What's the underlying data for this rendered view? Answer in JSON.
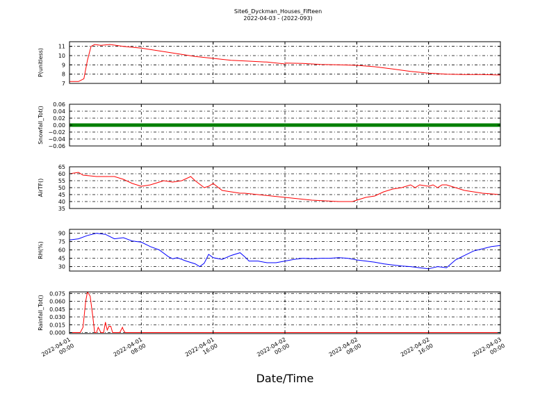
{
  "figure": {
    "title": "Site6_Dyckman_Houses_Fifteen",
    "subtitle": "2022-04-03 - (2022-093)",
    "xlabel": "Date/Time",
    "x_ticks": [
      [
        "2022-04-01",
        "00:00"
      ],
      [
        "2022-04-01",
        "08:00"
      ],
      [
        "2022-04-01",
        "16:00"
      ],
      [
        "2022-04-02",
        "00:00"
      ],
      [
        "2022-04-02",
        "08:00"
      ],
      [
        "2022-04-02",
        "16:00"
      ],
      [
        "2022-04-03",
        "00:00"
      ]
    ]
  },
  "chart_data": [
    {
      "type": "line",
      "ylabel": "P(unitless)",
      "color": "#ff0000",
      "ylim": [
        7,
        11.5
      ],
      "yticks": [
        7,
        8,
        9,
        10,
        11
      ],
      "ytick_labels": [
        "7",
        "8",
        "9",
        "10",
        "11"
      ],
      "grid": true,
      "x_hours": [
        0,
        1,
        1.6,
        2,
        2.4,
        2.8,
        3.5,
        4.5,
        6,
        8,
        10,
        12,
        14,
        16,
        18,
        20,
        22,
        24,
        24.1,
        26,
        28,
        30,
        32,
        34,
        36,
        38,
        40,
        42,
        44,
        46,
        48
      ],
      "values": [
        7.2,
        7.2,
        7.5,
        9.5,
        11.0,
        11.2,
        11.1,
        11.2,
        11.0,
        10.8,
        10.5,
        10.2,
        9.9,
        9.7,
        9.5,
        9.4,
        9.3,
        9.1,
        9.2,
        9.15,
        9.05,
        9.0,
        8.95,
        8.8,
        8.55,
        8.3,
        8.1,
        8.0,
        7.95,
        7.95,
        7.9
      ]
    },
    {
      "type": "scatter",
      "ylabel": "Snowfall_Tot()",
      "color": "#007f00",
      "ylim": [
        -0.06,
        0.06
      ],
      "yticks": [
        -0.06,
        -0.04,
        -0.02,
        0.0,
        0.02,
        0.04,
        0.06
      ],
      "ytick_labels": [
        "−0.06",
        "−0.04",
        "−0.02",
        "0.00",
        "0.02",
        "0.04",
        "0.06"
      ],
      "grid": true,
      "x_hours": [
        0,
        48
      ],
      "values": [
        0.0,
        0.0
      ],
      "dense": true
    },
    {
      "type": "line",
      "ylabel": "AirTF()",
      "color": "#ff0000",
      "ylim": [
        35,
        65
      ],
      "yticks": [
        35,
        40,
        45,
        50,
        55,
        60,
        65
      ],
      "ytick_labels": [
        "35",
        "40",
        "45",
        "50",
        "55",
        "60",
        "65"
      ],
      "grid": true,
      "x_hours": [
        0,
        1,
        1.5,
        3,
        5,
        6,
        7,
        8,
        9,
        10,
        10.5,
        11.5,
        12.5,
        13.5,
        14,
        15,
        15.5,
        16,
        17,
        18,
        19,
        19.5,
        21,
        24,
        27,
        30,
        31.5,
        32,
        33,
        34,
        35,
        36,
        37,
        38,
        38.5,
        39,
        40,
        40.5,
        41,
        41.5,
        42,
        43,
        44,
        45,
        46,
        48
      ],
      "values": [
        60,
        61,
        59,
        58,
        58,
        56,
        53,
        51,
        52,
        54,
        55,
        54,
        55,
        58,
        55,
        50,
        51,
        53,
        48,
        47,
        46,
        46,
        45,
        43,
        41,
        40,
        40,
        41,
        43,
        44,
        47,
        49,
        50,
        52,
        50,
        52,
        51,
        52,
        50,
        52,
        52,
        50,
        48,
        47,
        46,
        45
      ]
    },
    {
      "type": "line",
      "ylabel": "RH(%)",
      "color": "#0000ff",
      "ylim": [
        22,
        97
      ],
      "yticks": [
        30,
        45,
        60,
        75,
        90
      ],
      "ytick_labels": [
        "30",
        "45",
        "60",
        "75",
        "90"
      ],
      "grid": true,
      "x_hours": [
        0,
        1,
        2,
        3,
        4,
        5,
        6,
        7,
        8,
        9,
        10,
        11,
        11.5,
        12,
        13,
        14,
        14.5,
        15,
        15.5,
        16,
        17,
        18,
        19,
        19.5,
        20,
        21,
        22,
        23,
        24,
        25,
        26,
        27,
        28,
        29,
        30,
        31,
        32,
        33,
        34,
        35,
        36,
        37,
        38,
        39,
        39.5,
        40,
        41,
        42,
        43,
        44,
        45,
        46,
        47,
        48
      ],
      "values": [
        78,
        80,
        86,
        90,
        88,
        80,
        82,
        76,
        74,
        66,
        60,
        48,
        44,
        46,
        40,
        35,
        30,
        36,
        52,
        46,
        43,
        50,
        55,
        48,
        40,
        40,
        37,
        37,
        40,
        43,
        45,
        44,
        45,
        45,
        46,
        45,
        42,
        40,
        38,
        35,
        33,
        31,
        30,
        28,
        27,
        26,
        30,
        28,
        42,
        50,
        58,
        62,
        66,
        68
      ]
    },
    {
      "type": "line",
      "ylabel": "Rainfall_Tot()",
      "color": "#ff0000",
      "ylim": [
        -0.002,
        0.078
      ],
      "yticks": [
        0.0,
        0.015,
        0.03,
        0.045,
        0.06,
        0.075
      ],
      "ytick_labels": [
        "0.000",
        "0.015",
        "0.030",
        "0.045",
        "0.060",
        "0.075"
      ],
      "grid": true,
      "x_hours": [
        0,
        1.2,
        1.5,
        1.8,
        2.0,
        2.3,
        2.6,
        2.8,
        3.0,
        3.2,
        3.5,
        3.8,
        4.0,
        4.2,
        4.4,
        4.6,
        4.8,
        5.0,
        5.2,
        5.4,
        5.6,
        5.9,
        6.0,
        6.2,
        48
      ],
      "values": [
        0,
        0,
        0.01,
        0.06,
        0.078,
        0.07,
        0.03,
        0.0,
        0.0,
        0.01,
        0.0,
        0.0,
        0.02,
        0.005,
        0.012,
        0.012,
        0.0,
        0.0,
        0.0,
        0.0,
        0.0,
        0.01,
        0.005,
        0.0,
        0.0
      ]
    }
  ]
}
